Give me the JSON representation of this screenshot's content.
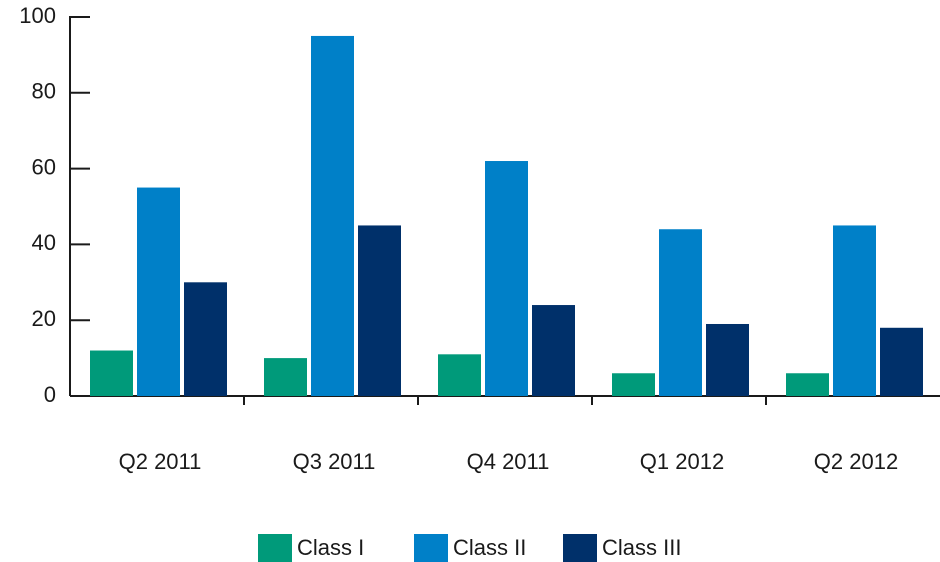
{
  "chart_data": {
    "type": "bar",
    "categories": [
      "Q2 2011",
      "Q3 2011",
      "Q4 2011",
      "Q1 2012",
      "Q2 2012"
    ],
    "series": [
      {
        "name": "Class I",
        "color": "#009a7a",
        "values": [
          12,
          10,
          11,
          6,
          6
        ]
      },
      {
        "name": "Class II",
        "color": "#0080c8",
        "values": [
          55,
          95,
          62,
          44,
          45
        ]
      },
      {
        "name": "Class III",
        "color": "#00306a",
        "values": [
          30,
          45,
          24,
          19,
          18
        ]
      }
    ],
    "ylim": [
      0,
      100
    ],
    "yticks": [
      0,
      20,
      40,
      60,
      80,
      100
    ],
    "grid": false,
    "legend": "bottom"
  }
}
